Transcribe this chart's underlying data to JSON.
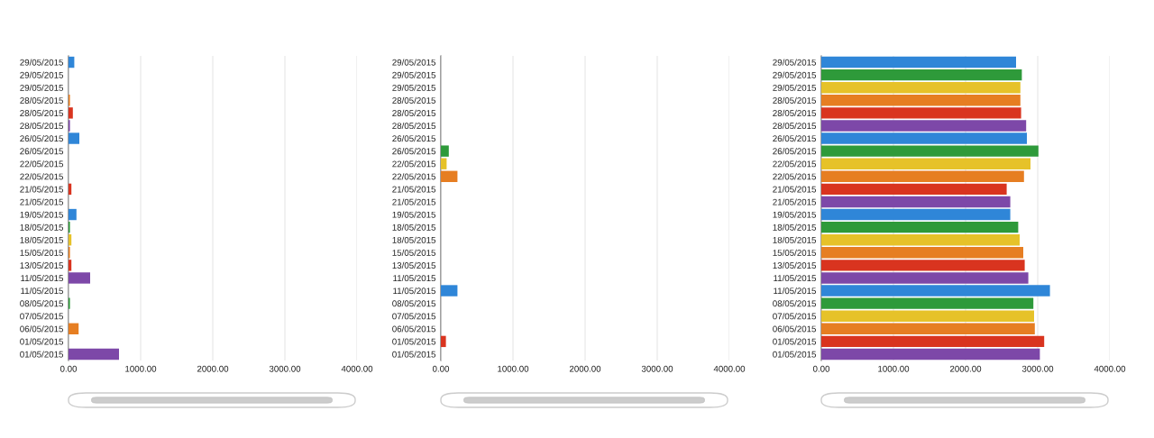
{
  "chart_data": [
    {
      "type": "bar",
      "orientation": "horizontal",
      "categories": [
        "29/05/2015",
        "29/05/2015",
        "29/05/2015",
        "28/05/2015",
        "28/05/2015",
        "28/05/2015",
        "26/05/2015",
        "26/05/2015",
        "22/05/2015",
        "22/05/2015",
        "21/05/2015",
        "21/05/2015",
        "19/05/2015",
        "18/05/2015",
        "18/05/2015",
        "15/05/2015",
        "13/05/2015",
        "11/05/2015",
        "11/05/2015",
        "08/05/2015",
        "07/05/2015",
        "06/05/2015",
        "01/05/2015",
        "01/05/2015"
      ],
      "values": [
        80,
        null,
        null,
        20,
        60,
        20,
        150,
        null,
        null,
        null,
        40,
        null,
        110,
        20,
        40,
        20,
        40,
        300,
        null,
        20,
        null,
        140,
        null,
        700
      ],
      "colors": [
        "#2f86d8",
        "#2e9a3a",
        "#e6c229",
        "#e67e22",
        "#d9341f",
        "#7d48a8",
        "#2f86d8",
        "#2e9a3a",
        "#e6c229",
        "#e67e22",
        "#d9341f",
        "#7d48a8",
        "#2f86d8",
        "#2e9a3a",
        "#e6c229",
        "#e67e22",
        "#d9341f",
        "#7d48a8",
        "#2f86d8",
        "#2e9a3a",
        "#e6c229",
        "#e67e22",
        "#d9341f",
        "#7d48a8"
      ],
      "xlim": [
        0,
        4000
      ],
      "xticks": [
        {
          "value": 0,
          "label": "0.00"
        },
        {
          "value": 1000,
          "label": "1000.00"
        },
        {
          "value": 2000,
          "label": "2000.00"
        },
        {
          "value": 3000,
          "label": "3000.00"
        },
        {
          "value": 4000,
          "label": "4000.00"
        }
      ],
      "grid": "x",
      "legend": false
    },
    {
      "type": "bar",
      "orientation": "horizontal",
      "categories": [
        "29/05/2015",
        "29/05/2015",
        "29/05/2015",
        "28/05/2015",
        "28/05/2015",
        "28/05/2015",
        "26/05/2015",
        "26/05/2015",
        "22/05/2015",
        "22/05/2015",
        "21/05/2015",
        "21/05/2015",
        "19/05/2015",
        "18/05/2015",
        "18/05/2015",
        "15/05/2015",
        "13/05/2015",
        "11/05/2015",
        "11/05/2015",
        "08/05/2015",
        "07/05/2015",
        "06/05/2015",
        "01/05/2015",
        "01/05/2015"
      ],
      "values": [
        null,
        null,
        null,
        null,
        null,
        null,
        null,
        110,
        80,
        230,
        null,
        null,
        null,
        null,
        null,
        null,
        null,
        null,
        230,
        null,
        null,
        null,
        70,
        null
      ],
      "colors": [
        "#2f86d8",
        "#2e9a3a",
        "#e6c229",
        "#e67e22",
        "#d9341f",
        "#7d48a8",
        "#2f86d8",
        "#2e9a3a",
        "#e6c229",
        "#e67e22",
        "#d9341f",
        "#7d48a8",
        "#2f86d8",
        "#2e9a3a",
        "#e6c229",
        "#e67e22",
        "#d9341f",
        "#7d48a8",
        "#2f86d8",
        "#2e9a3a",
        "#e6c229",
        "#e67e22",
        "#d9341f",
        "#7d48a8"
      ],
      "xlim": [
        0,
        4000
      ],
      "xticks": [
        {
          "value": 0,
          "label": "0.00"
        },
        {
          "value": 1000,
          "label": "1000.00"
        },
        {
          "value": 2000,
          "label": "2000.00"
        },
        {
          "value": 3000,
          "label": "3000.00"
        },
        {
          "value": 4000,
          "label": "4000.00"
        }
      ],
      "grid": "x",
      "legend": false
    },
    {
      "type": "bar",
      "orientation": "horizontal",
      "categories": [
        "29/05/2015",
        "29/05/2015",
        "29/05/2015",
        "28/05/2015",
        "28/05/2015",
        "28/05/2015",
        "26/05/2015",
        "26/05/2015",
        "22/05/2015",
        "22/05/2015",
        "21/05/2015",
        "21/05/2015",
        "19/05/2015",
        "18/05/2015",
        "18/05/2015",
        "15/05/2015",
        "13/05/2015",
        "11/05/2015",
        "11/05/2015",
        "08/05/2015",
        "07/05/2015",
        "06/05/2015",
        "01/05/2015",
        "01/05/2015"
      ],
      "values": [
        2700,
        2780,
        2760,
        2760,
        2770,
        2840,
        2850,
        3010,
        2900,
        2810,
        2570,
        2620,
        2620,
        2730,
        2750,
        2800,
        2820,
        2870,
        3170,
        2940,
        2950,
        2960,
        3090,
        3030
      ],
      "colors": [
        "#2f86d8",
        "#2e9a3a",
        "#e6c229",
        "#e67e22",
        "#d9341f",
        "#7d48a8",
        "#2f86d8",
        "#2e9a3a",
        "#e6c229",
        "#e67e22",
        "#d9341f",
        "#7d48a8",
        "#2f86d8",
        "#2e9a3a",
        "#e6c229",
        "#e67e22",
        "#d9341f",
        "#7d48a8",
        "#2f86d8",
        "#2e9a3a",
        "#e6c229",
        "#e67e22",
        "#d9341f",
        "#7d48a8"
      ],
      "xlim": [
        0,
        4000
      ],
      "xticks": [
        {
          "value": 0,
          "label": "0.00"
        },
        {
          "value": 1000,
          "label": "1000.00"
        },
        {
          "value": 2000,
          "label": "2000.00"
        },
        {
          "value": 3000,
          "label": "3000.00"
        },
        {
          "value": 4000,
          "label": "4000.00"
        }
      ],
      "grid": "x",
      "legend": false
    }
  ]
}
